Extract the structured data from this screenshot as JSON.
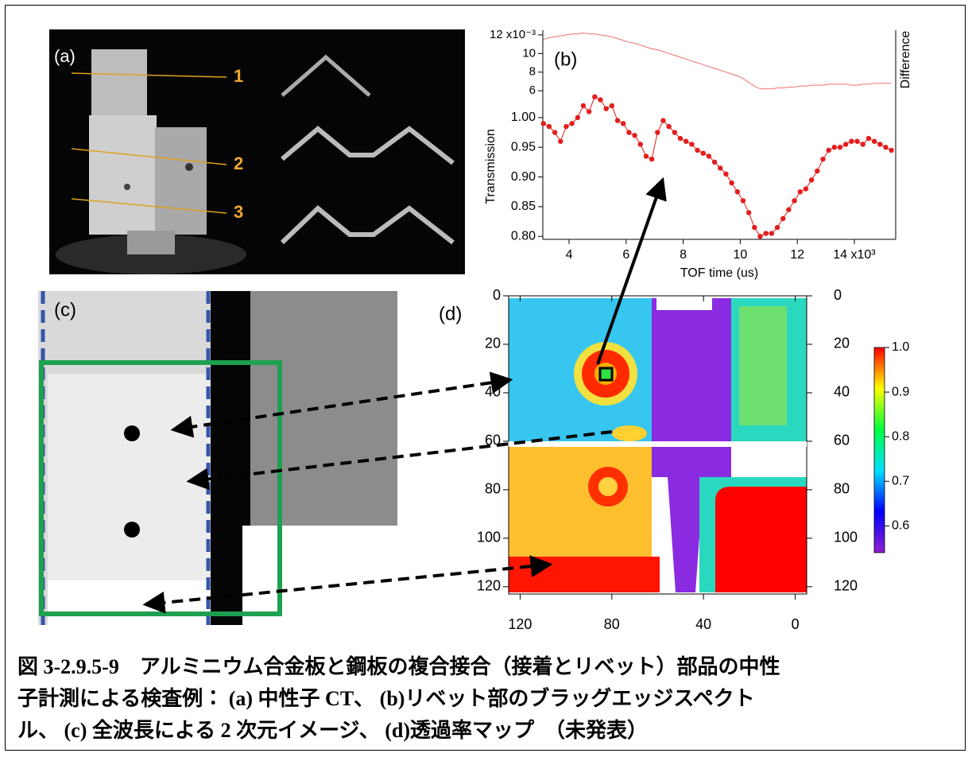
{
  "panels": {
    "a": {
      "label": "(a)",
      "slices": [
        "1",
        "2",
        "3"
      ]
    },
    "c": {
      "label": "(c)"
    }
  },
  "chart_data": [
    {
      "type": "line",
      "label": "(b)",
      "x_label": "TOF time (us)",
      "y_label": "Transmission",
      "y2_label": "Difference",
      "x": [
        3100,
        3300,
        3500,
        3700,
        3900,
        4100,
        4300,
        4500,
        4700,
        4900,
        5100,
        5300,
        5500,
        5700,
        5900,
        6100,
        6300,
        6500,
        6700,
        6900,
        7100,
        7300,
        7500,
        7700,
        7900,
        8100,
        8300,
        8500,
        8700,
        8900,
        9100,
        9300,
        9500,
        9700,
        9900,
        10100,
        10300,
        10500,
        10700,
        10900,
        11100,
        11300,
        11500,
        11700,
        11900,
        12100,
        12300,
        12500,
        12700,
        12900,
        13100,
        13300,
        13500,
        13700,
        13900,
        14100,
        14300,
        14500,
        14700,
        14900,
        15100,
        15300
      ],
      "series": [
        {
          "color": "#e51c1c",
          "markers": true,
          "values": [
            0.99,
            0.985,
            0.975,
            0.96,
            0.985,
            0.99,
            1.0,
            1.02,
            1.01,
            1.035,
            1.03,
            1.015,
            1.02,
            0.995,
            0.99,
            0.975,
            0.97,
            0.955,
            0.935,
            0.93,
            0.975,
            0.995,
            0.985,
            0.975,
            0.965,
            0.96,
            0.955,
            0.945,
            0.94,
            0.935,
            0.925,
            0.915,
            0.905,
            0.89,
            0.875,
            0.86,
            0.84,
            0.815,
            0.8,
            0.805,
            0.805,
            0.815,
            0.83,
            0.845,
            0.86,
            0.875,
            0.88,
            0.895,
            0.91,
            0.93,
            0.945,
            0.95,
            0.95,
            0.955,
            0.96,
            0.96,
            0.955,
            0.965,
            0.96,
            0.955,
            0.95,
            0.945
          ]
        },
        {
          "color": "#f07070",
          "axis": "y2",
          "markers": false,
          "values": [
            0.0115,
            0.0117,
            0.0118,
            0.0119,
            0.012,
            0.0121,
            0.0121,
            0.0122,
            0.0121,
            0.0121,
            0.012,
            0.0119,
            0.0118,
            0.0116,
            0.0114,
            0.0112,
            0.0111,
            0.0109,
            0.0107,
            0.0105,
            0.0104,
            0.0102,
            0.01,
            0.0098,
            0.0096,
            0.0094,
            0.0092,
            0.009,
            0.0088,
            0.0086,
            0.0084,
            0.0082,
            0.008,
            0.0078,
            0.0076,
            0.0073,
            0.0069,
            0.0065,
            0.0062,
            0.0062,
            0.0062,
            0.0063,
            0.0063,
            0.0064,
            0.0064,
            0.0065,
            0.0065,
            0.0066,
            0.0066,
            0.0066,
            0.0067,
            0.0067,
            0.0067,
            0.0067,
            0.0066,
            0.0066,
            0.0067,
            0.0067,
            0.0068,
            0.0068,
            0.0068,
            0.0068
          ]
        }
      ],
      "xlim": [
        3080,
        15450
      ],
      "xticks": [
        {
          "value": 4000,
          "label": "4"
        },
        {
          "value": 6000,
          "label": "6"
        },
        {
          "value": 8000,
          "label": "8"
        },
        {
          "value": 10000,
          "label": "10"
        },
        {
          "value": 12000,
          "label": "12"
        },
        {
          "value": 14000,
          "label": "14 x10³"
        }
      ],
      "ylim": [
        0.795,
        1.04
      ],
      "yticks": [
        {
          "value": 0.8,
          "label": "0.80"
        },
        0.85,
        {
          "value": 0.9,
          "label": "0.90"
        },
        0.95,
        {
          "value": 1,
          "label": "1.00"
        }
      ],
      "y2lim": [
        0.0055,
        0.0125
      ],
      "y2ticks": [
        {
          "value": 0.006,
          "label": "6"
        },
        {
          "value": 0.008,
          "label": "8"
        },
        {
          "value": 0.01,
          "label": "10"
        },
        {
          "value": 0.012,
          "label": "12 x10⁻³"
        }
      ]
    },
    {
      "type": "heatmap",
      "label": "(d)",
      "xlim": [
        125,
        -5
      ],
      "xticks": [
        120,
        80,
        40,
        0
      ],
      "ylim": [
        0,
        123
      ],
      "yticks": [
        0,
        20,
        40,
        60,
        80,
        100,
        120
      ],
      "y2ticks": [
        0,
        20,
        40,
        60,
        80,
        100,
        120
      ],
      "colormap": [
        "#ff0000",
        "#ffff00",
        "#00ff40",
        "#00e0ff",
        "#0000ff",
        "#9020d0"
      ],
      "zlim": [
        0.54,
        1.0
      ],
      "zticks": [
        {
          "value": 1,
          "label": "1.0"
        },
        0.9,
        0.8,
        0.7,
        0.6
      ]
    }
  ],
  "caption": {
    "lines": [
      "図 3-2.9.5-9　アルミニウム合金板と鋼板の複合接合（接着とリベット）部品の中性",
      "子計測による検査例： (a) 中性子 CT、 (b)リベット部のブラッグエッジスペクト",
      "ル、 (c) 全波長による 2 次元イメージ、 (d)透過率マップ　（未発表）"
    ]
  }
}
